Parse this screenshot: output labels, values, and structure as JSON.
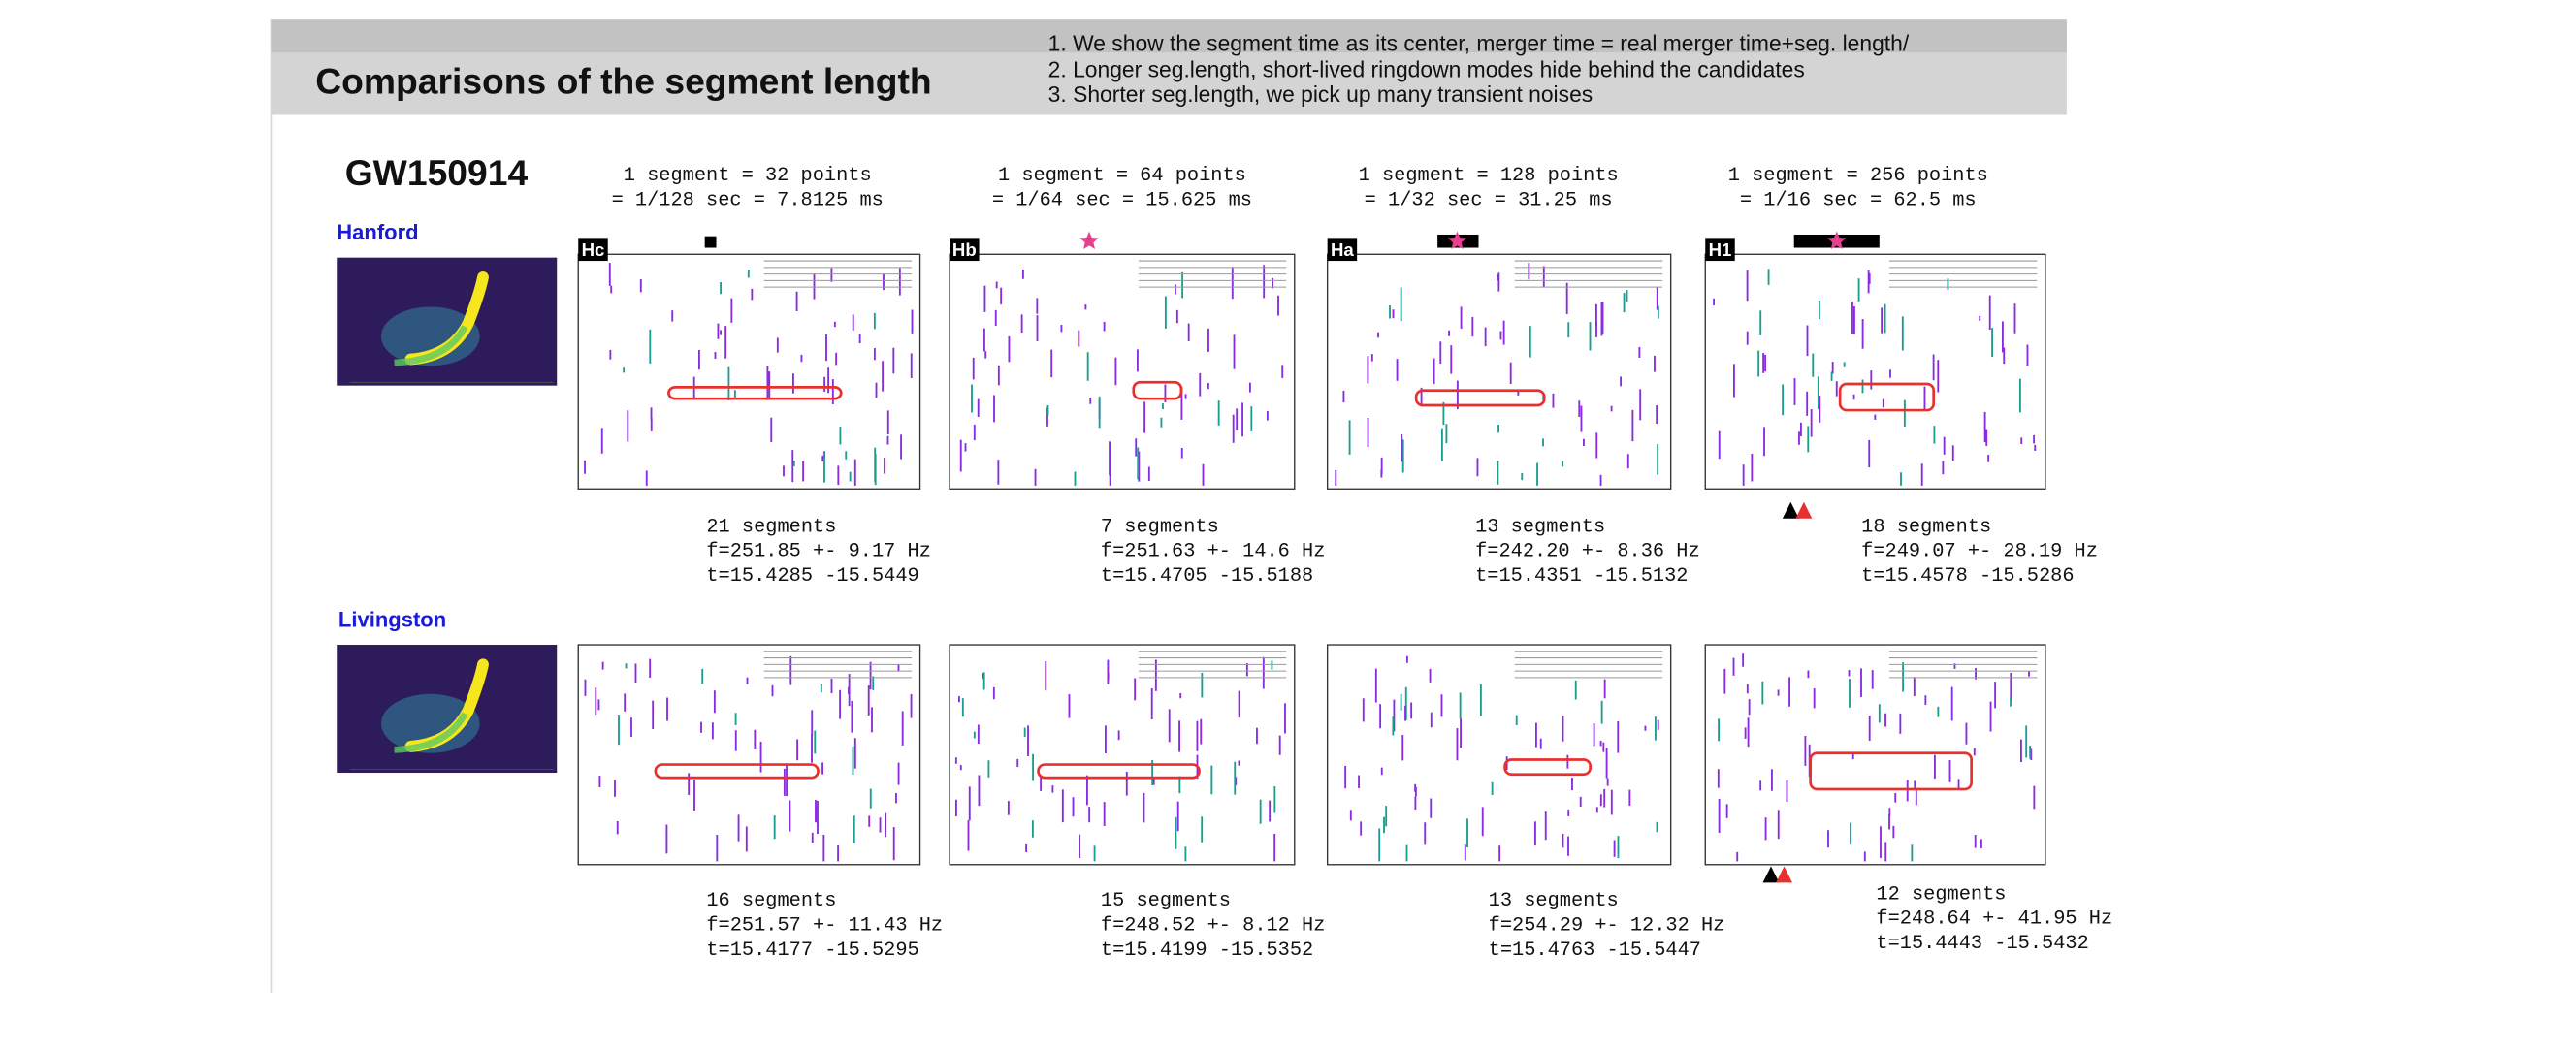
{
  "header": {
    "title": "Comparisons of the segment length",
    "notes": [
      "1. We show the segment time as its center, merger time = real merger time+seg. length/",
      "2. Longer seg.length, short-lived ringdown modes hide behind the candidates",
      "3. Shorter seg.length, we pick up many transient noises"
    ]
  },
  "event": "GW150914",
  "detectors": [
    "Hanford",
    "Livingston"
  ],
  "columns": [
    {
      "label": "Hc",
      "lines": [
        "1 segment = 32 points",
        "= 1/128 sec = 7.8125 ms"
      ]
    },
    {
      "label": "Hb",
      "lines": [
        "1 segment = 64 points",
        "= 1/64 sec = 15.625 ms"
      ]
    },
    {
      "label": "Ha",
      "lines": [
        "1 segment = 128 points",
        "= 1/32 sec = 31.25 ms"
      ]
    },
    {
      "label": "H1",
      "lines": [
        "1 segment = 256 points",
        "= 1/16 sec = 62.5 ms"
      ]
    }
  ],
  "results": [
    [
      [
        "21 segments",
        "f=251.85 +- 9.17 Hz",
        "t=15.4285 -15.5449"
      ],
      [
        "7 segments",
        "f=251.63 +- 14.6 Hz",
        "t=15.4705 -15.5188"
      ],
      [
        "13 segments",
        "f=242.20 +- 8.36 Hz",
        "t=15.4351 -15.5132"
      ],
      [
        "18 segments",
        "f=249.07 +- 28.19 Hz",
        "t=15.4578 -15.5286"
      ]
    ],
    [
      [
        "16 segments",
        "f=251.57 +- 11.43 Hz",
        "t=15.4177 -15.5295"
      ],
      [
        "15 segments",
        "f=248.52 +- 8.12 Hz",
        "t=15.4199 -15.5352"
      ],
      [
        "13 segments",
        "f=254.29 +- 12.32 Hz",
        "t=15.4763 -15.5447"
      ],
      [
        "12 segments",
        "f=248.64 +- 41.95 Hz",
        "t=15.4443 -15.5432"
      ]
    ]
  ]
}
